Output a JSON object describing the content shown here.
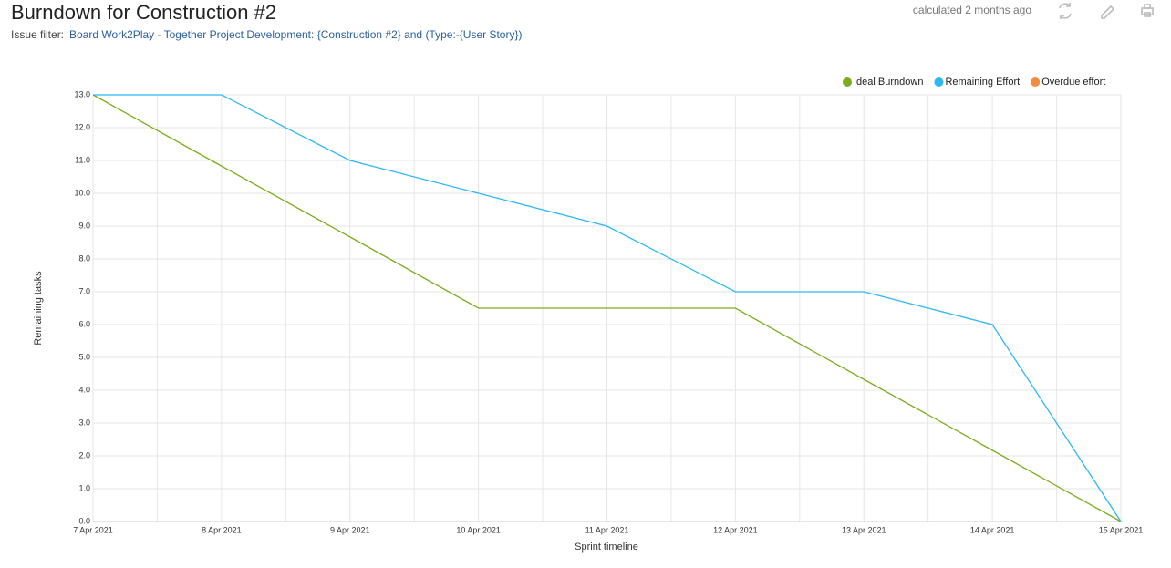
{
  "header": {
    "title": "Burndown for Construction #2",
    "filter_label": "Issue filter:",
    "filter_text": "Board Work2Play - Together Project Development: {Construction #2} and (Type:-{User Story})",
    "calculated": "calculated 2 months ago"
  },
  "chart_data": {
    "type": "line",
    "x_label": "Sprint timeline",
    "y_label": "Remaining tasks",
    "categories": [
      "7 Apr 2021",
      "8 Apr 2021",
      "9 Apr 2021",
      "10 Apr 2021",
      "11 Apr 2021",
      "12 Apr 2021",
      "13 Apr 2021",
      "14 Apr 2021",
      "15 Apr 2021"
    ],
    "series": [
      {
        "name": "Ideal Burndown",
        "color": "#7cac1c",
        "values": [
          13,
          10.83,
          8.67,
          6.5,
          6.5,
          6.5,
          4.33,
          2.17,
          0
        ]
      },
      {
        "name": "Remaining Effort",
        "color": "#2db8f5",
        "values": [
          13,
          13,
          11,
          10,
          9,
          7,
          7,
          6,
          0
        ]
      },
      {
        "name": "Overdue effort",
        "color": "#f58b3c",
        "values": [
          null,
          null,
          null,
          null,
          null,
          null,
          null,
          null,
          null
        ]
      }
    ],
    "ylim": [
      0,
      13
    ],
    "yticks": [
      {
        "value": 0,
        "label": "0.0"
      },
      {
        "value": 1,
        "label": "1.0"
      },
      {
        "value": 2,
        "label": "2.0"
      },
      {
        "value": 3,
        "label": "3.0"
      },
      {
        "value": 4,
        "label": "4.0"
      },
      {
        "value": 5,
        "label": "5.0"
      },
      {
        "value": 6,
        "label": "6.0"
      },
      {
        "value": 7,
        "label": "7.0"
      },
      {
        "value": 8,
        "label": "8.0"
      },
      {
        "value": 9,
        "label": "9.0"
      },
      {
        "value": 10,
        "label": "10.0"
      },
      {
        "value": 11,
        "label": "11.0"
      },
      {
        "value": 12,
        "label": "12.0"
      },
      {
        "value": 13,
        "label": "13.0"
      }
    ],
    "grid": true,
    "legend": "top-right"
  }
}
